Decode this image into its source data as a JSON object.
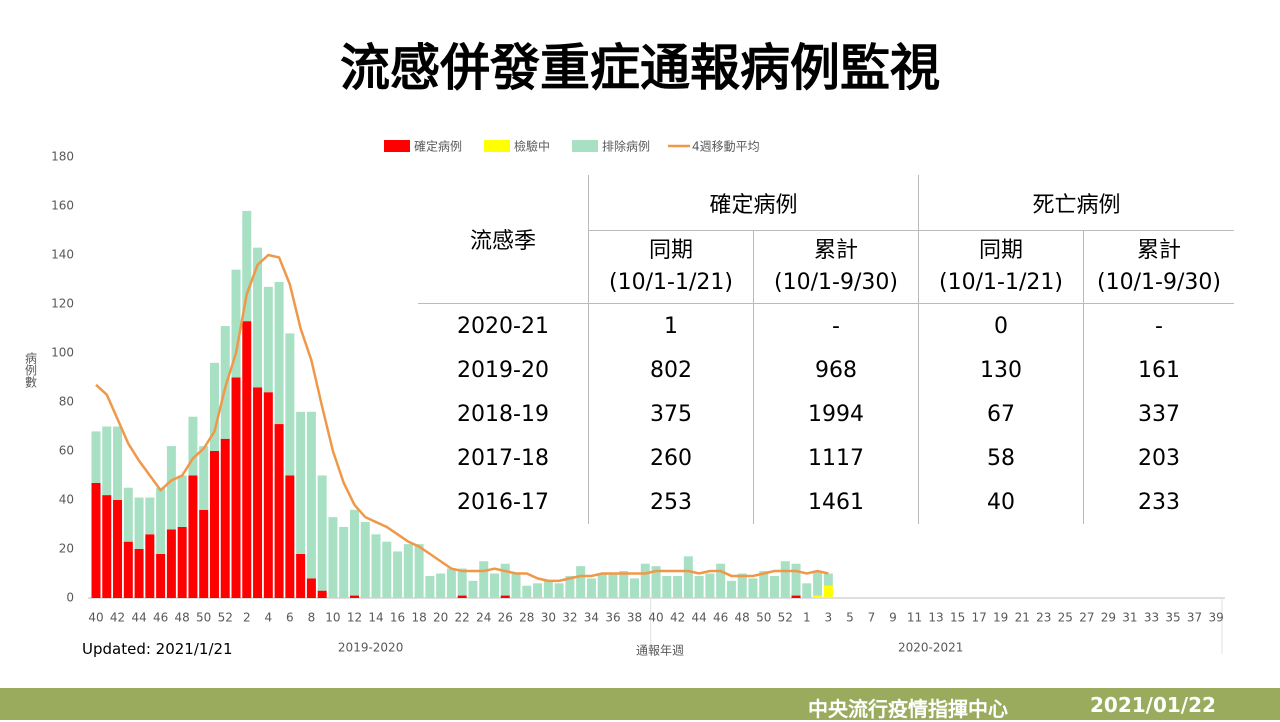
{
  "title": "流感併發重症通報病例監視",
  "chart_data": {
    "type": "bar",
    "stacked": true,
    "x_label": "通報年週",
    "y_label": "病例數",
    "season_labels": [
      "2019-2020",
      "2020-2021"
    ],
    "ylim": [
      0,
      180
    ],
    "yticks": [
      0,
      20,
      40,
      60,
      80,
      100,
      120,
      140,
      160,
      180
    ],
    "grid": false,
    "legend": "top",
    "categories": [
      40,
      null,
      42,
      null,
      44,
      null,
      46,
      null,
      48,
      null,
      50,
      null,
      52,
      null,
      2,
      null,
      4,
      null,
      6,
      null,
      8,
      null,
      10,
      null,
      12,
      null,
      14,
      null,
      16,
      null,
      18,
      null,
      20,
      null,
      22,
      null,
      24,
      null,
      26,
      null,
      28,
      null,
      30,
      null,
      32,
      null,
      34,
      null,
      36,
      null,
      38,
      null,
      40,
      null,
      42,
      null,
      44,
      null,
      46,
      null,
      48,
      null,
      50,
      null,
      52,
      null,
      1,
      null,
      3,
      null,
      5,
      null,
      7,
      null,
      9,
      null,
      11,
      null,
      13,
      null,
      15,
      null,
      17,
      null,
      19,
      null,
      21,
      null,
      23,
      null,
      25,
      null,
      27,
      null,
      29,
      null,
      31,
      null,
      33,
      null,
      35,
      null,
      37,
      null,
      39
    ],
    "series": [
      {
        "name": "確定病例",
        "color": "#ff0000",
        "values": [
          47,
          42,
          40,
          23,
          20,
          26,
          18,
          28,
          29,
          50,
          36,
          60,
          65,
          90,
          113,
          86,
          84,
          71,
          50,
          18,
          8,
          3,
          0,
          0,
          1,
          0,
          0,
          0,
          0,
          0,
          0,
          0,
          0,
          0,
          1,
          0,
          0,
          0,
          1,
          0,
          0,
          0,
          0,
          0,
          0,
          0,
          0,
          0,
          0,
          0,
          0,
          0,
          0,
          0,
          0,
          0,
          0,
          0,
          0,
          0,
          0,
          0,
          0,
          0,
          0,
          1,
          0,
          0,
          0,
          null,
          null,
          null,
          null,
          null,
          null,
          null,
          null,
          null,
          null,
          null,
          null,
          null,
          null,
          null,
          null,
          null,
          null,
          null,
          null,
          null,
          null,
          null,
          null,
          null,
          null,
          null,
          null,
          null,
          null,
          null,
          null,
          null,
          null,
          null,
          null
        ]
      },
      {
        "name": "檢驗中",
        "color": "#ffff00",
        "values": [
          0,
          0,
          0,
          0,
          0,
          0,
          0,
          0,
          0,
          0,
          0,
          0,
          0,
          0,
          0,
          0,
          0,
          0,
          0,
          0,
          0,
          0,
          0,
          0,
          0,
          0,
          0,
          0,
          0,
          0,
          0,
          0,
          0,
          0,
          0,
          0,
          0,
          0,
          0,
          0,
          0,
          0,
          0,
          0,
          0,
          0,
          0,
          0,
          0,
          0,
          0,
          0,
          0,
          0,
          0,
          0,
          0,
          0,
          0,
          0,
          0,
          0,
          0,
          0,
          0,
          0,
          0,
          1,
          5,
          null,
          null,
          null,
          null,
          null,
          null,
          null,
          null,
          null,
          null,
          null,
          null,
          null,
          null,
          null,
          null,
          null,
          null,
          null,
          null,
          null,
          null,
          null,
          null,
          null,
          null,
          null,
          null,
          null,
          null,
          null,
          null,
          null,
          null,
          null,
          null
        ]
      },
      {
        "name": "排除病例",
        "color": "#a8e0c4",
        "values": [
          21,
          28,
          30,
          22,
          21,
          15,
          27,
          34,
          21,
          24,
          26,
          36,
          46,
          44,
          45,
          57,
          43,
          58,
          58,
          58,
          68,
          47,
          33,
          29,
          35,
          31,
          26,
          23,
          19,
          22,
          22,
          9,
          10,
          12,
          11,
          7,
          15,
          10,
          13,
          10,
          5,
          6,
          7,
          6,
          9,
          13,
          8,
          10,
          10,
          11,
          8,
          14,
          13,
          9,
          9,
          17,
          9,
          10,
          14,
          7,
          10,
          8,
          11,
          9,
          15,
          13,
          6,
          10,
          5,
          null,
          null,
          null,
          null,
          null,
          null,
          null,
          null,
          null,
          null,
          null,
          null,
          null,
          null,
          null,
          null,
          null,
          null,
          null,
          null,
          null,
          null,
          null,
          null,
          null,
          null,
          null,
          null,
          null,
          null,
          null,
          null,
          null,
          null,
          null,
          null
        ]
      },
      {
        "name": "4週移動平均",
        "color": "#f0984a",
        "type": "line",
        "values": [
          87,
          83,
          73,
          63,
          56,
          50,
          44,
          48,
          50,
          57,
          61,
          68,
          86,
          100,
          124,
          136,
          140,
          139,
          128,
          110,
          97,
          78,
          60,
          47,
          38,
          33,
          31,
          29,
          26,
          23,
          21,
          18,
          15,
          12,
          11,
          11,
          11,
          12,
          11,
          10,
          10,
          8,
          7,
          7,
          8,
          9,
          9,
          10,
          10,
          10,
          10,
          10,
          11,
          11,
          11,
          11,
          10,
          11,
          11,
          9,
          9,
          9,
          10,
          11,
          11,
          11,
          10,
          11,
          10,
          null,
          null,
          null,
          null,
          null,
          null,
          null,
          null,
          null,
          null,
          null,
          null,
          null,
          null,
          null,
          null,
          null,
          null,
          null,
          null,
          null,
          null,
          null,
          null,
          null,
          null,
          null,
          null,
          null,
          null,
          null,
          null,
          null,
          null,
          null,
          null
        ]
      }
    ]
  },
  "table": {
    "header": "流感季",
    "groups": [
      "確定病例",
      "死亡病例"
    ],
    "subheaders": [
      {
        "label": "同期",
        "period": "(10/1-1/21)"
      },
      {
        "label": "累計",
        "period": "(10/1-9/30)"
      },
      {
        "label": "同期",
        "period": "(10/1-1/21)"
      },
      {
        "label": "累計",
        "period": "(10/1-9/30)"
      }
    ],
    "rows": [
      [
        "2020-21",
        1,
        "-",
        0,
        "-"
      ],
      [
        "2019-20",
        802,
        968,
        130,
        161
      ],
      [
        "2018-19",
        375,
        1994,
        67,
        337
      ],
      [
        "2017-18",
        260,
        1117,
        58,
        203
      ],
      [
        "2016-17",
        253,
        1461,
        40,
        233
      ]
    ]
  },
  "updated": "Updated: 2021/1/21",
  "footer": {
    "org": "中央流行疫情指揮中心",
    "date": "2021/01/22"
  }
}
